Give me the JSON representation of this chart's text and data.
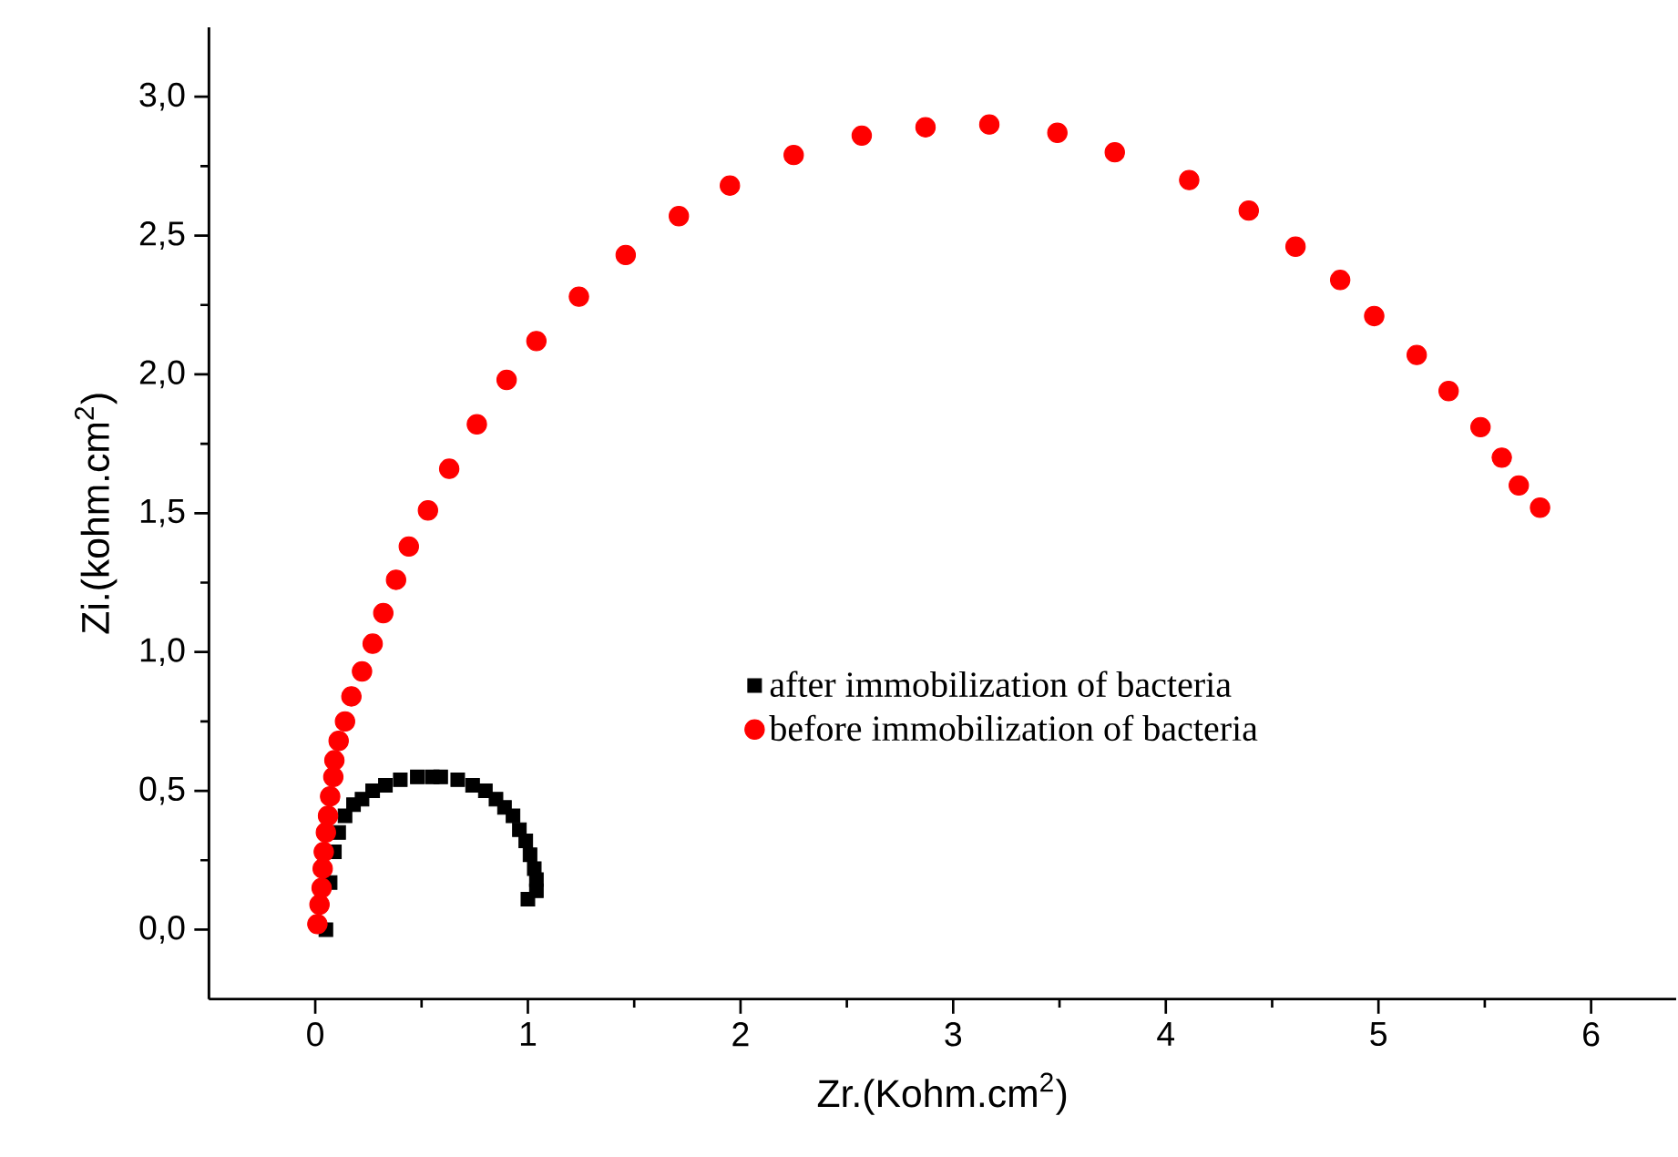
{
  "chart_data": {
    "type": "scatter",
    "xlabel": "Zr.(Kohm.cm$^{2}$)",
    "ylabel": "Zi.(kohm.cm$^{2}$)",
    "xlim": [
      -0.5,
      6.4
    ],
    "ylim": [
      -0.25,
      3.25
    ],
    "xticks": [
      0,
      1,
      2,
      3,
      4,
      5,
      6
    ],
    "yticks": [
      {
        "value": 0,
        "label": "0,0"
      },
      {
        "value": 0.5,
        "label": "0,5"
      },
      {
        "value": 1,
        "label": "1,0"
      },
      {
        "value": 1.5,
        "label": "1,5"
      },
      {
        "value": 2,
        "label": "2,0"
      },
      {
        "value": 2.5,
        "label": "2,5"
      },
      {
        "value": 3,
        "label": "3,0"
      }
    ],
    "grid": false,
    "legend": "right",
    "series": [
      {
        "name": "after immobilization of bacteria",
        "color": "#000000",
        "marker": "square",
        "x": [
          0.05,
          0.07,
          0.09,
          0.11,
          0.14,
          0.18,
          0.22,
          0.27,
          0.33,
          0.4,
          0.48,
          0.55,
          0.59,
          0.67,
          0.74,
          0.8,
          0.85,
          0.89,
          0.93,
          0.96,
          0.99,
          1.01,
          1.03,
          1.04,
          1.04,
          1.0
        ],
        "values": [
          0.0,
          0.17,
          0.28,
          0.35,
          0.41,
          0.45,
          0.47,
          0.5,
          0.52,
          0.54,
          0.55,
          0.55,
          0.55,
          0.54,
          0.52,
          0.5,
          0.47,
          0.44,
          0.41,
          0.36,
          0.32,
          0.27,
          0.22,
          0.18,
          0.14,
          0.11
        ]
      },
      {
        "name": "before immobilization of bacteria",
        "color": "#ff0000",
        "marker": "circle",
        "x": [
          0.01,
          0.02,
          0.03,
          0.035,
          0.04,
          0.05,
          0.06,
          0.07,
          0.085,
          0.09,
          0.11,
          0.14,
          0.17,
          0.22,
          0.27,
          0.32,
          0.38,
          0.44,
          0.53,
          0.63,
          0.76,
          0.9,
          1.04,
          1.24,
          1.46,
          1.71,
          1.95,
          2.25,
          2.57,
          2.87,
          3.17,
          3.49,
          3.76,
          4.11,
          4.39,
          4.61,
          4.82,
          4.98,
          5.18,
          5.33,
          5.48,
          5.58,
          5.66,
          5.76
        ],
        "values": [
          0.02,
          0.09,
          0.15,
          0.22,
          0.28,
          0.35,
          0.41,
          0.48,
          0.55,
          0.61,
          0.68,
          0.75,
          0.84,
          0.93,
          1.03,
          1.14,
          1.26,
          1.38,
          1.51,
          1.66,
          1.82,
          1.98,
          2.12,
          2.28,
          2.43,
          2.57,
          2.68,
          2.79,
          2.86,
          2.89,
          2.9,
          2.87,
          2.8,
          2.7,
          2.59,
          2.46,
          2.34,
          2.21,
          2.07,
          1.94,
          1.81,
          1.7,
          1.6,
          1.52
        ]
      }
    ]
  }
}
